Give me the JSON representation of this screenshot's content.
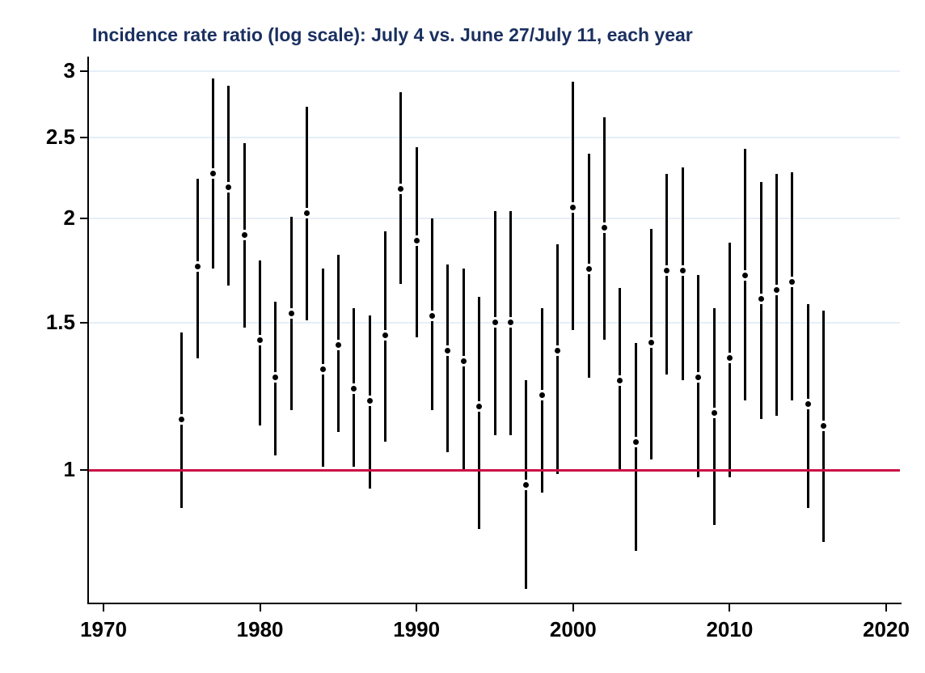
{
  "chart_data": {
    "type": "errorbar",
    "title": "Incidence rate ratio (log scale): July 4 vs. June 27/July 11, each year",
    "xlabel": "",
    "ylabel": "",
    "x_ticks": [
      1970,
      1980,
      1990,
      2000,
      2010,
      2020
    ],
    "y_ticks": [
      1,
      1.5,
      2,
      2.5,
      3
    ],
    "y_scale": "log",
    "xlim": [
      1969,
      2021
    ],
    "ylim": [
      0.69,
      3.12
    ],
    "grid": "horizontal",
    "ref_line": 1.0,
    "legend": "none",
    "series": [
      {
        "year": 1975,
        "lo": 0.9,
        "mid": 1.15,
        "hi": 1.46
      },
      {
        "year": 1976,
        "lo": 1.36,
        "mid": 1.75,
        "hi": 2.23
      },
      {
        "year": 1977,
        "lo": 1.74,
        "mid": 2.26,
        "hi": 2.94
      },
      {
        "year": 1978,
        "lo": 1.66,
        "mid": 2.18,
        "hi": 2.88
      },
      {
        "year": 1979,
        "lo": 1.48,
        "mid": 1.91,
        "hi": 2.46
      },
      {
        "year": 1980,
        "lo": 1.13,
        "mid": 1.43,
        "hi": 1.78
      },
      {
        "year": 1981,
        "lo": 1.04,
        "mid": 1.29,
        "hi": 1.59
      },
      {
        "year": 1982,
        "lo": 1.18,
        "mid": 1.54,
        "hi": 2.01
      },
      {
        "year": 1983,
        "lo": 1.51,
        "mid": 2.03,
        "hi": 2.72
      },
      {
        "year": 1984,
        "lo": 1.01,
        "mid": 1.32,
        "hi": 1.74
      },
      {
        "year": 1985,
        "lo": 1.11,
        "mid": 1.41,
        "hi": 1.81
      },
      {
        "year": 1986,
        "lo": 1.01,
        "mid": 1.25,
        "hi": 1.56
      },
      {
        "year": 1987,
        "lo": 0.95,
        "mid": 1.21,
        "hi": 1.53
      },
      {
        "year": 1988,
        "lo": 1.08,
        "mid": 1.45,
        "hi": 1.93
      },
      {
        "year": 1989,
        "lo": 1.67,
        "mid": 2.17,
        "hi": 2.83
      },
      {
        "year": 1990,
        "lo": 1.44,
        "mid": 1.88,
        "hi": 2.43
      },
      {
        "year": 1991,
        "lo": 1.18,
        "mid": 1.53,
        "hi": 2.0
      },
      {
        "year": 1992,
        "lo": 1.05,
        "mid": 1.39,
        "hi": 1.76
      },
      {
        "year": 1993,
        "lo": 1.0,
        "mid": 1.35,
        "hi": 1.74
      },
      {
        "year": 1994,
        "lo": 0.85,
        "mid": 1.19,
        "hi": 1.61
      },
      {
        "year": 1995,
        "lo": 1.1,
        "mid": 1.5,
        "hi": 2.04
      },
      {
        "year": 1996,
        "lo": 1.1,
        "mid": 1.5,
        "hi": 2.04
      },
      {
        "year": 1997,
        "lo": 0.72,
        "mid": 0.96,
        "hi": 1.28
      },
      {
        "year": 1998,
        "lo": 0.94,
        "mid": 1.23,
        "hi": 1.56
      },
      {
        "year": 1999,
        "lo": 0.99,
        "mid": 1.39,
        "hi": 1.86
      },
      {
        "year": 2000,
        "lo": 1.47,
        "mid": 2.06,
        "hi": 2.91
      },
      {
        "year": 2001,
        "lo": 1.29,
        "mid": 1.74,
        "hi": 2.39
      },
      {
        "year": 2002,
        "lo": 1.43,
        "mid": 1.95,
        "hi": 2.64
      },
      {
        "year": 2003,
        "lo": 1.0,
        "mid": 1.28,
        "hi": 1.65
      },
      {
        "year": 2004,
        "lo": 0.8,
        "mid": 1.08,
        "hi": 1.42
      },
      {
        "year": 2005,
        "lo": 1.03,
        "mid": 1.42,
        "hi": 1.94
      },
      {
        "year": 2006,
        "lo": 1.3,
        "mid": 1.73,
        "hi": 2.26
      },
      {
        "year": 2007,
        "lo": 1.28,
        "mid": 1.73,
        "hi": 2.3
      },
      {
        "year": 2008,
        "lo": 0.98,
        "mid": 1.29,
        "hi": 1.71
      },
      {
        "year": 2009,
        "lo": 0.86,
        "mid": 1.17,
        "hi": 1.56
      },
      {
        "year": 2010,
        "lo": 0.98,
        "mid": 1.36,
        "hi": 1.87
      },
      {
        "year": 2011,
        "lo": 1.21,
        "mid": 1.71,
        "hi": 2.42
      },
      {
        "year": 2012,
        "lo": 1.15,
        "mid": 1.6,
        "hi": 2.21
      },
      {
        "year": 2013,
        "lo": 1.16,
        "mid": 1.64,
        "hi": 2.26
      },
      {
        "year": 2014,
        "lo": 1.21,
        "mid": 1.68,
        "hi": 2.27
      },
      {
        "year": 2015,
        "lo": 0.9,
        "mid": 1.2,
        "hi": 1.58
      },
      {
        "year": 2016,
        "lo": 0.82,
        "mid": 1.13,
        "hi": 1.55
      }
    ],
    "colors": {
      "title": "#1b3060",
      "bar": "#000000",
      "point": "#000000",
      "ref_line": "#cc0f45",
      "gridline": "#e6eff7",
      "tick_label": "#000000",
      "background": "#ffffff"
    }
  }
}
